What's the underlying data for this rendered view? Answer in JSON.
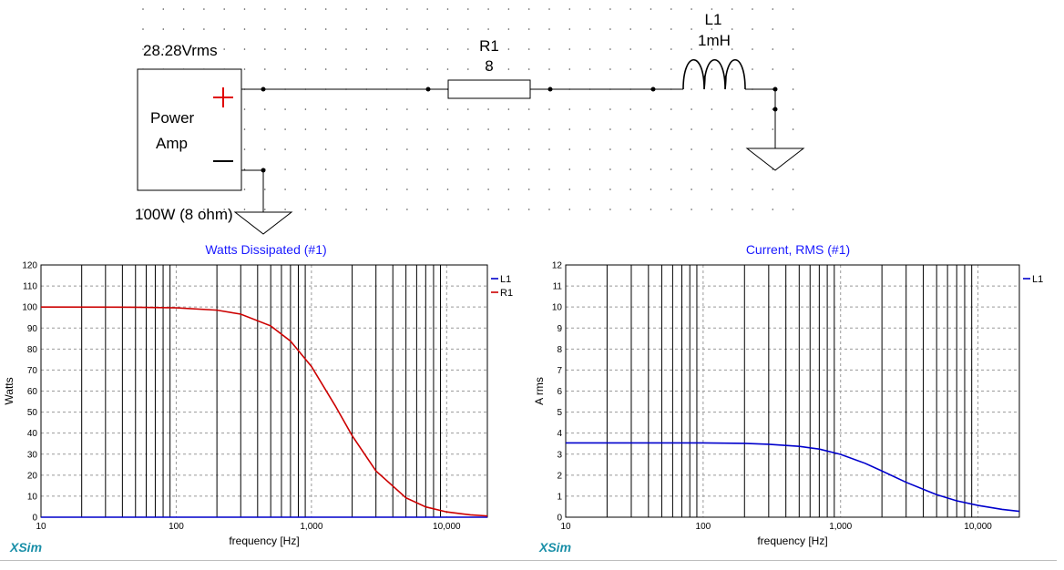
{
  "schematic": {
    "source_voltage": "28.28Vrms",
    "source_name_line1": "Power",
    "source_name_line2": "Amp",
    "source_rating": "100W (8 ohm)",
    "r1_name": "R1",
    "r1_value": "8",
    "l1_name": "L1",
    "l1_value": "1mH",
    "plus_color": "#e00000",
    "wire_color": "#000000"
  },
  "logo": "XSim",
  "chart_data": [
    {
      "type": "line",
      "title": "Watts Dissipated (#1)",
      "xlabel": "frequency [Hz]",
      "ylabel": "Watts",
      "xscale": "log",
      "xlim": [
        10,
        20000
      ],
      "ylim": [
        0,
        120
      ],
      "yticks": [
        0,
        10,
        20,
        30,
        40,
        50,
        60,
        70,
        80,
        90,
        100,
        110,
        120
      ],
      "xtick_labels": [
        {
          "value": 10,
          "label": "10"
        },
        {
          "value": 100,
          "label": "100"
        },
        {
          "value": 1000,
          "label": "1,000"
        },
        {
          "value": 10000,
          "label": "10,000"
        }
      ],
      "legend_position": "top-right",
      "series": [
        {
          "name": "L1",
          "color": "#0000cc",
          "x": [
            10,
            20000
          ],
          "y": [
            0,
            0
          ]
        },
        {
          "name": "R1",
          "color": "#cc0000",
          "x": [
            10,
            50,
            100,
            200,
            300,
            500,
            700,
            1000,
            1500,
            2000,
            3000,
            5000,
            7000,
            10000,
            15000,
            20000
          ],
          "y": [
            100,
            99.9,
            99.6,
            98.5,
            96.6,
            91.0,
            83.8,
            71.7,
            53.0,
            38.8,
            22.0,
            9.2,
            4.9,
            2.5,
            1.1,
            0.6
          ]
        }
      ],
      "grid": true
    },
    {
      "type": "line",
      "title": "Current, RMS (#1)",
      "xlabel": "frequency [Hz]",
      "ylabel": "A rms",
      "xscale": "log",
      "xlim": [
        10,
        20000
      ],
      "ylim": [
        0,
        12
      ],
      "yticks": [
        0,
        1,
        2,
        3,
        4,
        5,
        6,
        7,
        8,
        9,
        10,
        11,
        12
      ],
      "xtick_labels": [
        {
          "value": 10,
          "label": "10"
        },
        {
          "value": 100,
          "label": "100"
        },
        {
          "value": 1000,
          "label": "1,000"
        },
        {
          "value": 10000,
          "label": "10,000"
        }
      ],
      "legend_position": "top-right",
      "series": [
        {
          "name": "L1",
          "color": "#0000cc",
          "x": [
            10,
            50,
            100,
            200,
            300,
            500,
            700,
            1000,
            1500,
            2000,
            3000,
            5000,
            7000,
            10000,
            15000,
            20000
          ],
          "y": [
            3.535,
            3.534,
            3.534,
            3.51,
            3.47,
            3.37,
            3.24,
            2.99,
            2.57,
            2.2,
            1.66,
            1.07,
            0.78,
            0.56,
            0.37,
            0.28
          ]
        }
      ],
      "grid": true
    }
  ]
}
